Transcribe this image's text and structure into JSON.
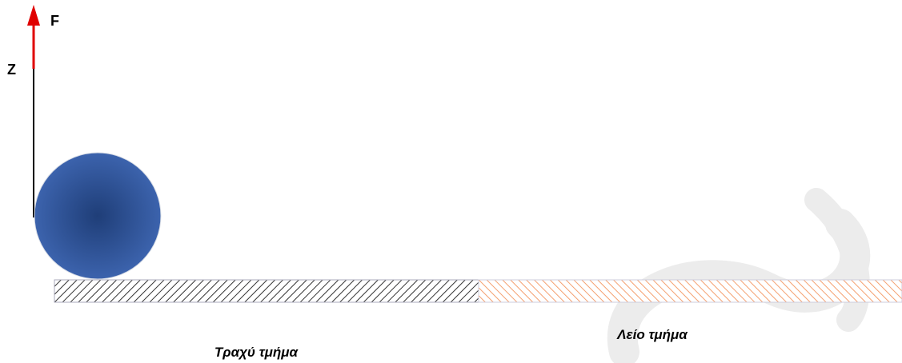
{
  "labels": {
    "force": "F",
    "axis": "Z",
    "rough": "Τραχύ τμήμα",
    "smooth": "Λείο τμήμα"
  }
}
